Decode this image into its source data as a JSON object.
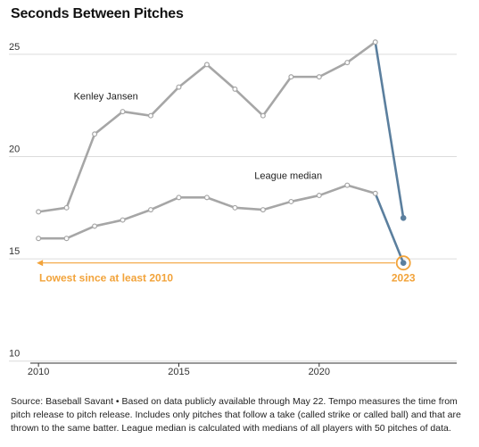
{
  "chart_data": {
    "type": "line",
    "title": "Seconds Between Pitches",
    "xlabel": "",
    "ylabel": "",
    "xlim": [
      2009.9,
      2024.9
    ],
    "ylim": [
      9.9,
      26.0
    ],
    "x_ticks": [
      2010,
      2015,
      2020
    ],
    "y_ticks": [
      10,
      15,
      20,
      25
    ],
    "grid": "horizontal",
    "x": [
      2010,
      2011,
      2012,
      2013,
      2014,
      2015,
      2016,
      2017,
      2018,
      2019,
      2020,
      2021,
      2022,
      2023
    ],
    "series": [
      {
        "name": "Kenley Jansen",
        "color": "#a6a6a6",
        "values": [
          17.3,
          17.5,
          21.1,
          22.2,
          22.0,
          23.4,
          24.5,
          23.3,
          22.0,
          23.9,
          23.9,
          24.6,
          25.6,
          17.0
        ]
      },
      {
        "name": "League median",
        "color": "#a6a6a6",
        "values": [
          16.0,
          16.0,
          16.6,
          16.9,
          17.4,
          18.0,
          18.0,
          17.5,
          17.4,
          17.8,
          18.1,
          18.6,
          18.2,
          14.8
        ]
      }
    ],
    "final_segment_color": "#5b7f9e",
    "annotations": [
      {
        "text": "Lowest since at least 2010",
        "color": "#f2a33a",
        "arrow_from": 2023,
        "arrow_to": 2010,
        "y": 14.8
      },
      {
        "text": "2023",
        "color": "#f2a33a",
        "x": 2023,
        "y": 14.8
      }
    ]
  },
  "source_label": "Source: Baseball Savant",
  "note": "Based on data publicly available through May 22. Tempo measures the time from pitch release to pitch release. Includes only pitches that follow a take (called strike or called ball) and that are thrown to the same batter. League median is calculated with medians of all players with 50 pitches of data."
}
